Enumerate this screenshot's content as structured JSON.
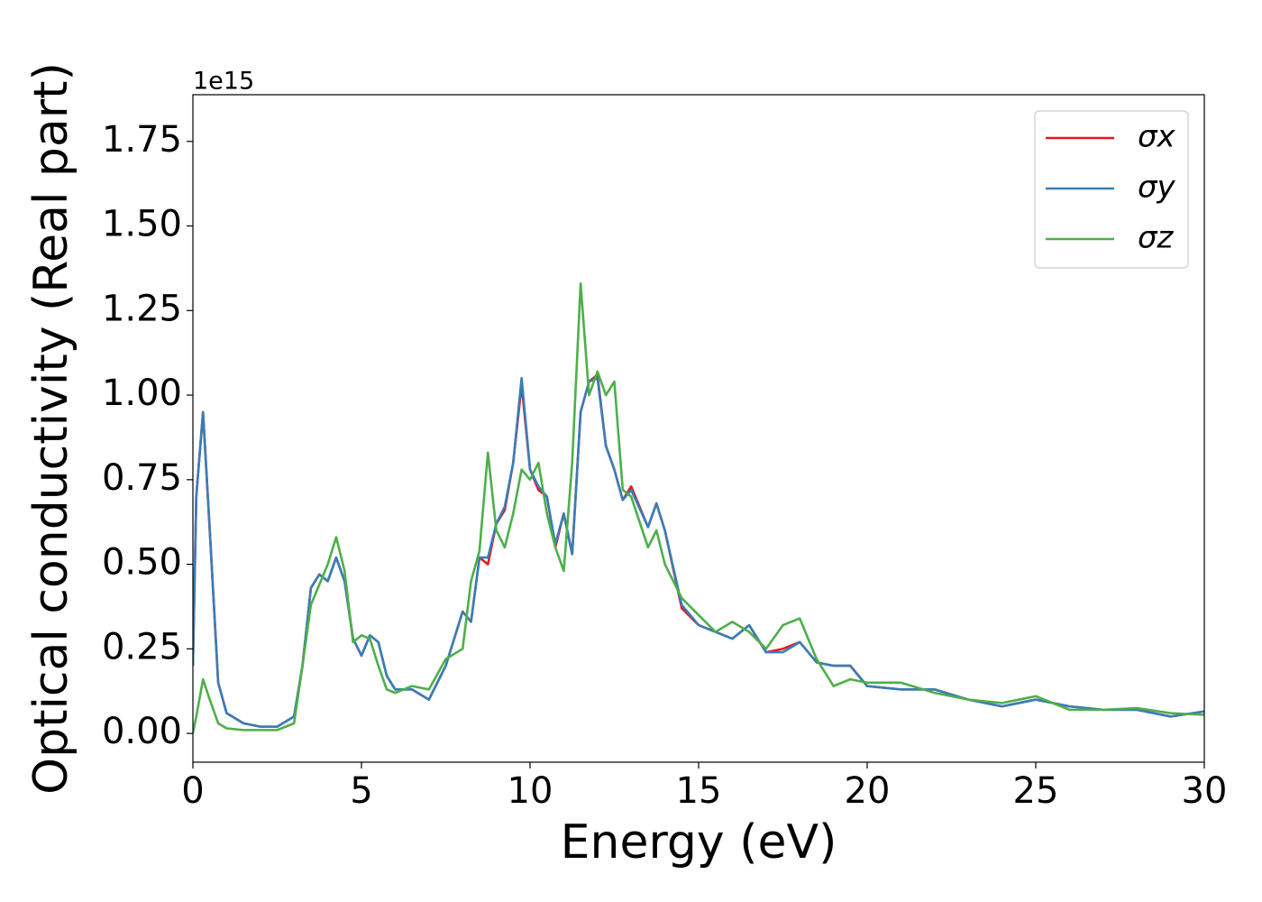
{
  "chart_data": {
    "type": "line",
    "xlabel": "Energy (eV)",
    "ylabel": "Optical conductivity (Real part)",
    "y_offset_label": "1e15",
    "x": [
      0,
      0.1,
      0.3,
      0.5,
      0.75,
      1,
      1.5,
      2,
      2.5,
      3,
      3.25,
      3.5,
      3.75,
      4,
      4.25,
      4.5,
      4.75,
      5,
      5.25,
      5.5,
      5.75,
      6,
      6.5,
      7,
      7.5,
      8,
      8.25,
      8.5,
      8.75,
      9,
      9.25,
      9.5,
      9.75,
      10,
      10.25,
      10.5,
      10.75,
      11,
      11.25,
      11.5,
      11.75,
      12,
      12.25,
      12.5,
      12.75,
      13,
      13.5,
      13.75,
      14,
      14.5,
      15,
      15.5,
      16,
      16.5,
      17,
      17.5,
      18,
      18.5,
      19,
      19.5,
      20,
      21,
      22,
      23,
      24,
      25,
      26,
      27,
      28,
      29,
      30
    ],
    "series": [
      {
        "name": "σx",
        "color": "#e41a1c",
        "values": [
          0.2,
          0.7,
          0.95,
          0.6,
          0.15,
          0.06,
          0.03,
          0.02,
          0.02,
          0.05,
          0.2,
          0.43,
          0.47,
          0.45,
          0.52,
          0.45,
          0.28,
          0.23,
          0.29,
          0.27,
          0.17,
          0.13,
          0.13,
          0.1,
          0.2,
          0.36,
          0.33,
          0.52,
          0.5,
          0.62,
          0.66,
          0.8,
          1.03,
          0.78,
          0.72,
          0.7,
          0.55,
          0.65,
          0.53,
          0.95,
          1.04,
          1.06,
          0.85,
          0.78,
          0.69,
          0.73,
          0.61,
          0.68,
          0.6,
          0.37,
          0.32,
          0.3,
          0.28,
          0.32,
          0.24,
          0.25,
          0.27,
          0.21,
          0.2,
          0.2,
          0.14,
          0.13,
          0.13,
          0.1,
          0.08,
          0.1,
          0.08,
          0.07,
          0.07,
          0.05,
          0.065
        ]
      },
      {
        "name": "σy",
        "color": "#377eb8",
        "values": [
          0.2,
          0.7,
          0.95,
          0.6,
          0.15,
          0.06,
          0.03,
          0.02,
          0.02,
          0.05,
          0.2,
          0.43,
          0.47,
          0.45,
          0.52,
          0.45,
          0.28,
          0.23,
          0.29,
          0.27,
          0.17,
          0.13,
          0.13,
          0.1,
          0.2,
          0.36,
          0.33,
          0.52,
          0.52,
          0.62,
          0.67,
          0.8,
          1.05,
          0.78,
          0.73,
          0.7,
          0.56,
          0.65,
          0.53,
          0.95,
          1.04,
          1.05,
          0.85,
          0.78,
          0.69,
          0.72,
          0.61,
          0.68,
          0.6,
          0.38,
          0.32,
          0.3,
          0.28,
          0.32,
          0.24,
          0.24,
          0.27,
          0.21,
          0.2,
          0.2,
          0.14,
          0.13,
          0.13,
          0.1,
          0.08,
          0.1,
          0.08,
          0.07,
          0.07,
          0.05,
          0.065
        ]
      },
      {
        "name": "σz",
        "color": "#4daf4a",
        "values": [
          0.0,
          0.05,
          0.16,
          0.1,
          0.03,
          0.015,
          0.01,
          0.01,
          0.01,
          0.03,
          0.2,
          0.38,
          0.44,
          0.5,
          0.58,
          0.48,
          0.27,
          0.29,
          0.28,
          0.2,
          0.13,
          0.12,
          0.14,
          0.13,
          0.22,
          0.25,
          0.45,
          0.54,
          0.83,
          0.6,
          0.55,
          0.65,
          0.78,
          0.75,
          0.8,
          0.65,
          0.55,
          0.48,
          0.8,
          1.33,
          1.0,
          1.07,
          1.0,
          1.04,
          0.72,
          0.7,
          0.55,
          0.6,
          0.5,
          0.4,
          0.35,
          0.3,
          0.33,
          0.3,
          0.25,
          0.32,
          0.34,
          0.22,
          0.14,
          0.16,
          0.15,
          0.15,
          0.12,
          0.1,
          0.09,
          0.11,
          0.07,
          0.07,
          0.075,
          0.06,
          0.055
        ]
      }
    ],
    "xlim": [
      0,
      30
    ],
    "xticks": [
      0,
      5,
      10,
      15,
      20,
      25,
      30
    ],
    "ylim": [
      -0.085,
      1.888
    ],
    "yticks": [
      {
        "value": 0,
        "label": "0.00"
      },
      {
        "value": 0.25,
        "label": "0.25"
      },
      {
        "value": 0.5,
        "label": "0.50"
      },
      {
        "value": 0.75,
        "label": "0.75"
      },
      {
        "value": 1,
        "label": "1.00"
      },
      {
        "value": 1.25,
        "label": "1.25"
      },
      {
        "value": 1.5,
        "label": "1.50"
      },
      {
        "value": 1.75,
        "label": "1.75"
      }
    ],
    "legend": "upper right",
    "grid": false
  }
}
